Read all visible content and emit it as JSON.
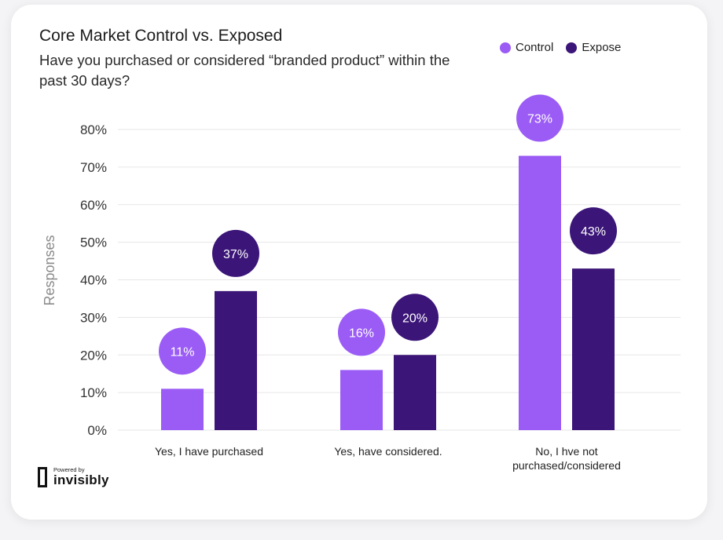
{
  "legend": {
    "control_label": "Control",
    "exposed_label": "Expose"
  },
  "branding": {
    "powered_by": "Powered by",
    "name": "invisibly"
  },
  "colors": {
    "control": "#9b5cf6",
    "exposed": "#3b1578",
    "grid": "#e6e6e6",
    "axis_text": "#333333"
  },
  "chart_data": {
    "type": "bar",
    "title": "Core Market Control vs. Exposed",
    "subtitle": "Have you purchased or considered “branded product” within the past 30 days?",
    "ylabel": "Responses",
    "xlabel": "",
    "ylim": [
      0,
      80
    ],
    "yticks": [
      0,
      10,
      20,
      30,
      40,
      50,
      60,
      70,
      80
    ],
    "ytick_labels": [
      "0%",
      "10%",
      "20%",
      "30%",
      "40%",
      "50%",
      "60%",
      "70%",
      "80%"
    ],
    "categories": [
      [
        "Yes, I have purchased"
      ],
      [
        "Yes,  have considered."
      ],
      [
        "No, I hve not",
        "purchased/considered"
      ]
    ],
    "series": [
      {
        "name": "Control",
        "values": [
          11,
          16,
          73
        ],
        "labels": [
          "11%",
          "16%",
          "73%"
        ]
      },
      {
        "name": "Expose",
        "values": [
          37,
          20,
          43
        ],
        "labels": [
          "37%",
          "20%",
          "43%"
        ]
      }
    ],
    "grid": true,
    "legend_position": "top-right"
  }
}
